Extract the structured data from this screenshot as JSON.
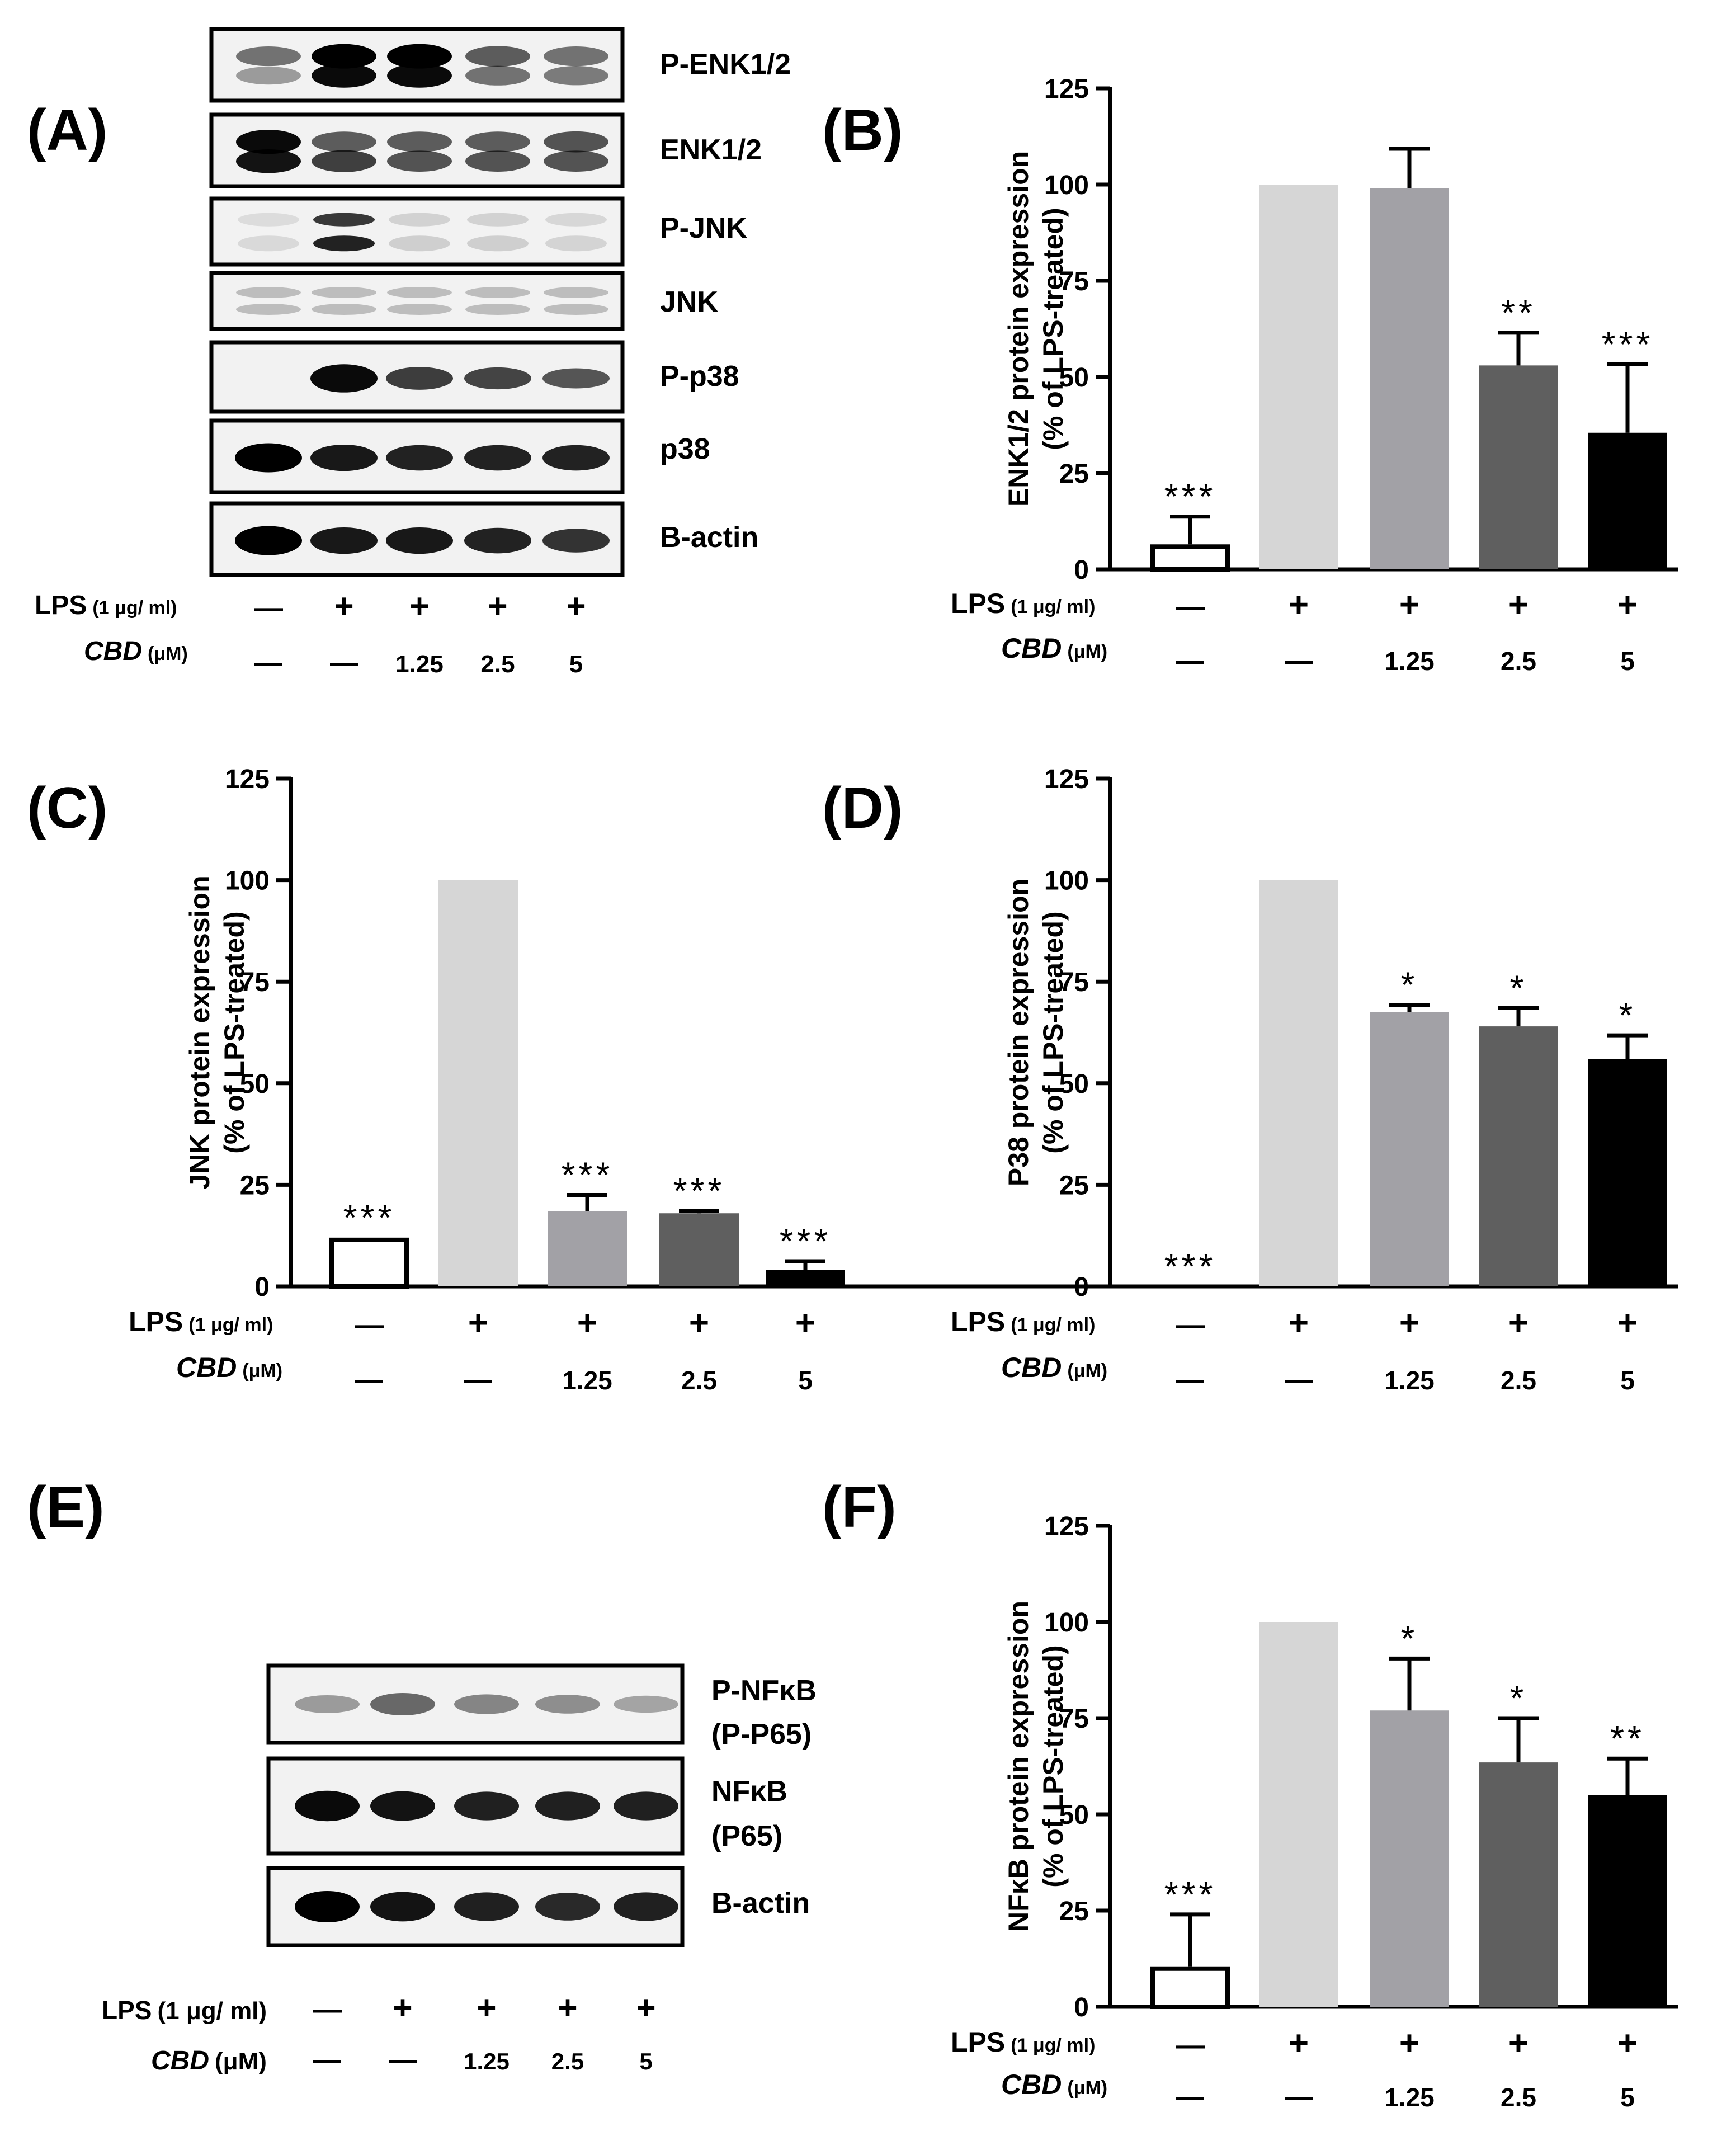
{
  "figure": {
    "panel_labels": [
      "(A)",
      "(B)",
      "(C)",
      "(D)",
      "(E)",
      "(F)"
    ],
    "lps_label": "LPS",
    "lps_unit": "(1 μg/ ml)",
    "cbd_label": "CBD",
    "cbd_unit": "(μM)",
    "lps_row": [
      "—",
      "+",
      "+",
      "+",
      "+"
    ],
    "cbd_row": [
      "—",
      "—",
      "1.25",
      "2.5",
      "5"
    ]
  },
  "blot_A": {
    "bands": [
      "P-ENK1/2",
      "ENK1/2",
      "P-JNK",
      "JNK",
      "P-p38",
      "p38",
      "B-actin"
    ]
  },
  "blot_E": {
    "bands": [
      "P-NFκB",
      "(P-P65)",
      "NFκB",
      "(P65)",
      "B-actin"
    ]
  },
  "colors": {
    "ctrl_fill": "#ffffff",
    "lps": "#d6d6d6",
    "cbd_1_25": "#a2a1a6",
    "cbd_2_5": "#5f5f5f",
    "cbd_5": "#000000"
  },
  "chart_data": [
    {
      "panel": "B",
      "type": "bar",
      "ylabel": "ENK1/2 protein expression",
      "ylabel2": "(% of LPS-treated)",
      "ylim": [
        0,
        125
      ],
      "yticks": [
        0,
        25,
        50,
        75,
        100,
        125
      ],
      "categories": [
        "Control",
        "LPS",
        "LPS + CBD 1.25",
        "LPS + CBD 2.5",
        "LPS + CBD 5"
      ],
      "values": [
        6.5,
        100,
        99,
        53,
        35.5
      ],
      "errors": [
        7.2,
        0,
        10.3,
        8.5,
        17.8
      ],
      "significance": [
        "***",
        "",
        "",
        "**",
        "***"
      ]
    },
    {
      "panel": "C",
      "type": "bar",
      "ylabel": "JNK protein expression",
      "ylabel2": "(% of LPS-treated)",
      "ylim": [
        0,
        125
      ],
      "yticks": [
        0,
        25,
        50,
        75,
        100,
        125
      ],
      "categories": [
        "Control",
        "LPS",
        "LPS + CBD 1.25",
        "LPS + CBD 2.5",
        "LPS + CBD 5"
      ],
      "values": [
        12,
        100,
        18.5,
        18,
        4
      ],
      "errors": [
        0,
        0,
        4,
        0.6,
        2.2
      ],
      "significance": [
        "***",
        "",
        "***",
        "***",
        "***"
      ]
    },
    {
      "panel": "D",
      "type": "bar",
      "ylabel": "P38 protein expression",
      "ylabel2": "(% of LPS-treated)",
      "ylim": [
        0,
        125
      ],
      "yticks": [
        0,
        25,
        50,
        75,
        100,
        125
      ],
      "categories": [
        "Control",
        "LPS",
        "LPS + CBD 1.25",
        "LPS + CBD 2.5",
        "LPS + CBD 5"
      ],
      "values": [
        0,
        100,
        67.5,
        64,
        56
      ],
      "errors": [
        0,
        0,
        1.8,
        4.5,
        5.8
      ],
      "significance": [
        "***",
        "",
        "*",
        "*",
        "*"
      ]
    },
    {
      "panel": "F",
      "type": "bar",
      "ylabel": "NFκB protein expression",
      "ylabel2": "(% of LPS-treated)",
      "ylim": [
        0,
        125
      ],
      "yticks": [
        0,
        25,
        50,
        75,
        100,
        125
      ],
      "categories": [
        "Control",
        "LPS",
        "LPS + CBD 1.25",
        "LPS + CBD 2.5",
        "LPS + CBD 5"
      ],
      "values": [
        10.5,
        100,
        77,
        63.5,
        55
      ],
      "errors": [
        13.5,
        0,
        13.5,
        11.5,
        9.5
      ],
      "significance": [
        "***",
        "",
        "*",
        "*",
        "**"
      ]
    }
  ]
}
